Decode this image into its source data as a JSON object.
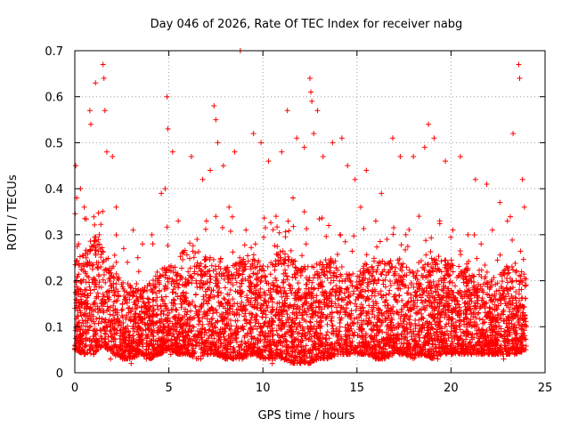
{
  "chart_data": {
    "type": "scatter",
    "title": "Day 046 of 2026, Rate Of TEC Index for receiver nabg",
    "xlabel": "GPS time / hours",
    "ylabel": "ROTI / TECUs",
    "xlim": [
      0,
      25
    ],
    "ylim": [
      0,
      0.7
    ],
    "x_ticks": [
      "0",
      "5",
      "10",
      "15",
      "20",
      "25"
    ],
    "y_ticks": [
      "0",
      "0.1",
      "0.2",
      "0.3",
      "0.4",
      "0.5",
      "0.6",
      "0.7"
    ],
    "grid": true,
    "marker": "plus",
    "color": "#ff0000",
    "series": [
      {
        "name": "",
        "points": [
          [
            0.05,
            0.45
          ],
          [
            0.1,
            0.38
          ],
          [
            0.3,
            0.4
          ],
          [
            0.5,
            0.36
          ],
          [
            0.8,
            0.57
          ],
          [
            0.85,
            0.54
          ],
          [
            1.1,
            0.63
          ],
          [
            1.5,
            0.67
          ],
          [
            1.55,
            0.64
          ],
          [
            1.6,
            0.57
          ],
          [
            1.7,
            0.48
          ],
          [
            2.0,
            0.47
          ],
          [
            2.2,
            0.36
          ],
          [
            2.6,
            0.27
          ],
          [
            3.1,
            0.31
          ],
          [
            3.6,
            0.28
          ],
          [
            4.1,
            0.3
          ],
          [
            4.6,
            0.39
          ],
          [
            4.8,
            0.4
          ],
          [
            4.9,
            0.6
          ],
          [
            4.95,
            0.53
          ],
          [
            5.2,
            0.48
          ],
          [
            5.5,
            0.33
          ],
          [
            6.2,
            0.47
          ],
          [
            6.8,
            0.42
          ],
          [
            7.2,
            0.44
          ],
          [
            7.4,
            0.58
          ],
          [
            7.5,
            0.55
          ],
          [
            7.6,
            0.5
          ],
          [
            7.9,
            0.45
          ],
          [
            8.5,
            0.48
          ],
          [
            8.8,
            0.7
          ],
          [
            9.5,
            0.52
          ],
          [
            9.9,
            0.5
          ],
          [
            10.3,
            0.46
          ],
          [
            11.0,
            0.48
          ],
          [
            11.3,
            0.57
          ],
          [
            11.8,
            0.51
          ],
          [
            12.2,
            0.49
          ],
          [
            12.5,
            0.64
          ],
          [
            12.55,
            0.61
          ],
          [
            12.6,
            0.59
          ],
          [
            12.7,
            0.52
          ],
          [
            12.9,
            0.57
          ],
          [
            13.2,
            0.47
          ],
          [
            13.7,
            0.5
          ],
          [
            14.2,
            0.51
          ],
          [
            14.5,
            0.45
          ],
          [
            14.9,
            0.42
          ],
          [
            15.5,
            0.44
          ],
          [
            16.3,
            0.39
          ],
          [
            16.9,
            0.51
          ],
          [
            17.3,
            0.47
          ],
          [
            18.0,
            0.47
          ],
          [
            18.6,
            0.49
          ],
          [
            18.8,
            0.54
          ],
          [
            19.1,
            0.51
          ],
          [
            19.7,
            0.46
          ],
          [
            20.5,
            0.47
          ],
          [
            21.3,
            0.42
          ],
          [
            21.9,
            0.41
          ],
          [
            22.6,
            0.37
          ],
          [
            23.3,
            0.52
          ],
          [
            23.6,
            0.67
          ],
          [
            23.65,
            0.64
          ],
          [
            23.8,
            0.42
          ],
          [
            0.2,
            0.28
          ],
          [
            0.6,
            0.25
          ],
          [
            1.3,
            0.3
          ],
          [
            2.8,
            0.24
          ],
          [
            3.4,
            0.22
          ],
          [
            4.3,
            0.21
          ],
          [
            5.7,
            0.26
          ],
          [
            6.5,
            0.29
          ],
          [
            7.0,
            0.33
          ],
          [
            8.2,
            0.36
          ],
          [
            9.1,
            0.31
          ],
          [
            9.6,
            0.28
          ],
          [
            10.7,
            0.34
          ],
          [
            11.6,
            0.38
          ],
          [
            12.2,
            0.35
          ],
          [
            13.5,
            0.32
          ],
          [
            14.1,
            0.3
          ],
          [
            15.2,
            0.36
          ],
          [
            16.0,
            0.33
          ],
          [
            16.6,
            0.29
          ],
          [
            17.6,
            0.3
          ],
          [
            18.3,
            0.34
          ],
          [
            19.4,
            0.33
          ],
          [
            20.1,
            0.31
          ],
          [
            20.9,
            0.3
          ],
          [
            21.6,
            0.28
          ],
          [
            22.2,
            0.31
          ],
          [
            23.0,
            0.33
          ],
          [
            23.9,
            0.36
          ],
          [
            0.4,
            0.08
          ],
          [
            1.0,
            0.04
          ],
          [
            1.9,
            0.03
          ],
          [
            2.4,
            0.05
          ],
          [
            3.0,
            0.02
          ],
          [
            3.8,
            0.03
          ],
          [
            4.5,
            0.06
          ],
          [
            5.1,
            0.04
          ],
          [
            6.0,
            0.05
          ],
          [
            6.7,
            0.03
          ],
          [
            7.3,
            0.06
          ],
          [
            8.0,
            0.04
          ],
          [
            8.9,
            0.03
          ],
          [
            9.8,
            0.05
          ],
          [
            10.5,
            0.02
          ],
          [
            11.2,
            0.03
          ],
          [
            12.0,
            0.02
          ],
          [
            12.8,
            0.03
          ],
          [
            13.6,
            0.04
          ],
          [
            14.4,
            0.05
          ],
          [
            15.4,
            0.06
          ],
          [
            16.2,
            0.03
          ],
          [
            17.0,
            0.05
          ],
          [
            17.8,
            0.04
          ],
          [
            18.5,
            0.05
          ],
          [
            19.3,
            0.03
          ],
          [
            20.2,
            0.05
          ],
          [
            21.1,
            0.04
          ],
          [
            22.0,
            0.06
          ],
          [
            22.8,
            0.03
          ],
          [
            23.5,
            0.05
          ]
        ]
      }
    ],
    "density_profile": {
      "x": [
        0,
        0.5,
        1,
        1.5,
        2,
        2.5,
        3,
        3.5,
        4,
        4.5,
        5,
        5.5,
        6,
        6.5,
        7,
        7.5,
        8,
        8.5,
        9,
        9.5,
        10,
        10.5,
        11,
        11.5,
        12,
        12.5,
        13,
        13.5,
        14,
        14.5,
        15,
        15.5,
        16,
        16.5,
        17,
        17.5,
        18,
        18.5,
        19,
        19.5,
        20,
        20.5,
        21,
        21.5,
        22,
        22.5,
        23,
        23.5,
        24
      ],
      "upper": [
        0.25,
        0.26,
        0.3,
        0.28,
        0.24,
        0.2,
        0.19,
        0.18,
        0.2,
        0.22,
        0.24,
        0.22,
        0.22,
        0.24,
        0.26,
        0.25,
        0.23,
        0.24,
        0.26,
        0.25,
        0.24,
        0.25,
        0.27,
        0.25,
        0.24,
        0.23,
        0.24,
        0.25,
        0.25,
        0.23,
        0.22,
        0.24,
        0.25,
        0.24,
        0.25,
        0.24,
        0.23,
        0.25,
        0.26,
        0.25,
        0.24,
        0.23,
        0.22,
        0.22,
        0.21,
        0.22,
        0.23,
        0.24,
        0.22
      ],
      "lower": [
        0.05,
        0.04,
        0.04,
        0.06,
        0.04,
        0.03,
        0.03,
        0.04,
        0.03,
        0.04,
        0.05,
        0.04,
        0.04,
        0.03,
        0.04,
        0.04,
        0.03,
        0.03,
        0.03,
        0.04,
        0.03,
        0.03,
        0.03,
        0.02,
        0.02,
        0.02,
        0.03,
        0.03,
        0.04,
        0.04,
        0.04,
        0.04,
        0.03,
        0.03,
        0.04,
        0.04,
        0.03,
        0.04,
        0.03,
        0.04,
        0.04,
        0.04,
        0.04,
        0.04,
        0.04,
        0.04,
        0.04,
        0.04,
        0.05
      ],
      "x_end": 24
    }
  }
}
